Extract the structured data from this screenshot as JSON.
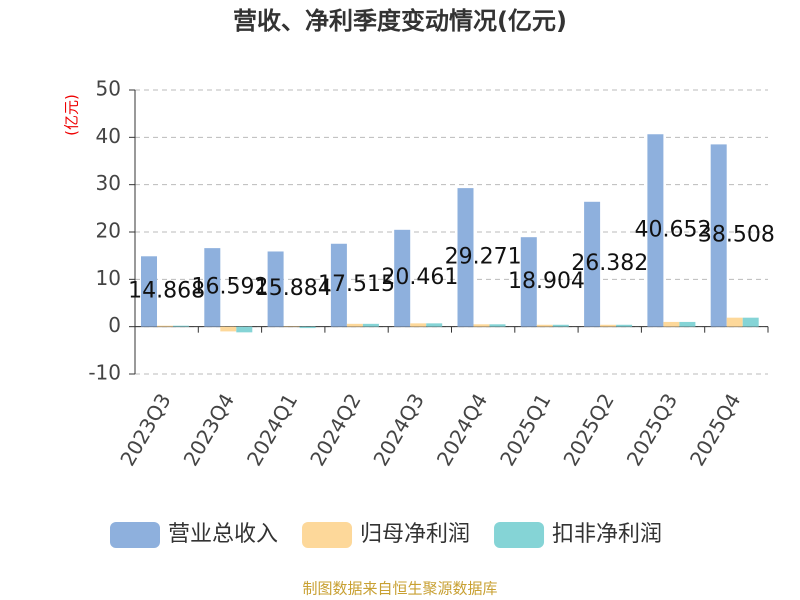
{
  "chart_data": {
    "type": "bar",
    "title": "营收、净利季度变动情况(亿元)",
    "y_label": "(亿元)",
    "categories": [
      "2023Q3",
      "2023Q4",
      "2024Q1",
      "2024Q2",
      "2024Q3",
      "2024Q4",
      "2025Q1",
      "2025Q2",
      "2025Q3",
      "2025Q4"
    ],
    "series": [
      {
        "name": "营业总收入",
        "color": "#8eb0dd",
        "values": [
          14.868,
          16.592,
          15.884,
          17.515,
          20.461,
          29.271,
          18.904,
          26.382,
          40.652,
          38.508
        ],
        "data_labels": true
      },
      {
        "name": "归母净利润",
        "color": "#fdd89a",
        "values": [
          0.2,
          -1.0,
          0.1,
          0.6,
          0.7,
          0.5,
          0.4,
          0.4,
          1.0,
          1.9
        ]
      },
      {
        "name": "扣非净利润",
        "color": "#85d4d6",
        "values": [
          0.2,
          -1.2,
          -0.3,
          0.6,
          0.7,
          0.5,
          0.4,
          0.4,
          1.0,
          1.9
        ]
      }
    ],
    "ylim": [
      -10,
      50
    ],
    "yticks": [
      -10,
      0,
      10,
      20,
      30,
      40,
      50
    ],
    "grid": true,
    "source": "制图数据来自恒生聚源数据库"
  }
}
